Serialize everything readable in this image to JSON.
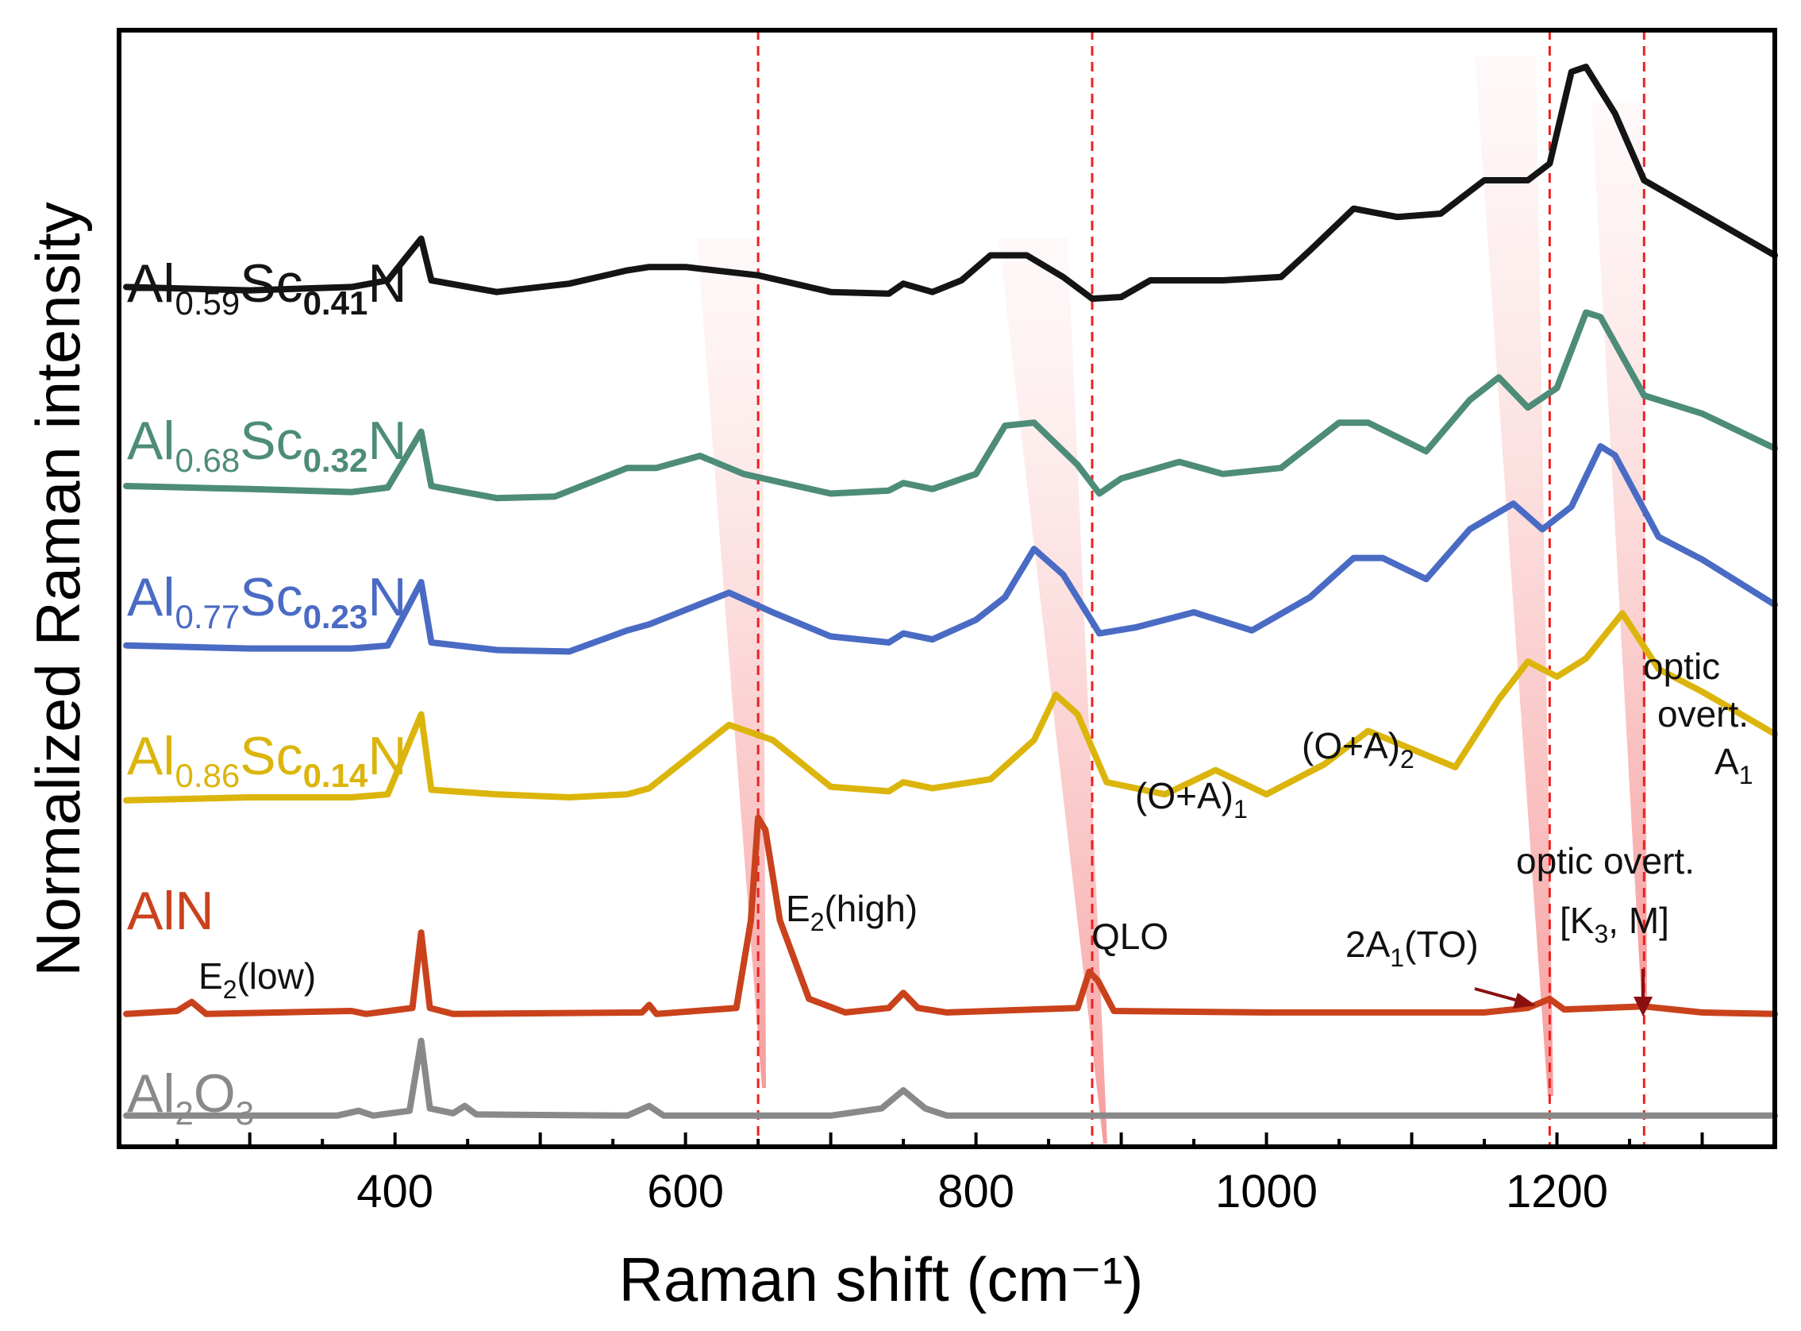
{
  "chart_data": {
    "type": "line",
    "title": "",
    "xlabel": "Raman shift (cm⁻¹)",
    "ylabel": "Normalized Raman intensity",
    "xlim": [
      210,
      1350
    ],
    "x_ticks": [
      400,
      600,
      800,
      1000,
      1200
    ],
    "grid": false,
    "legend": "inline-left",
    "series": [
      {
        "name_parts": [
          "Al",
          "0.59",
          "Sc",
          "0.41",
          "N"
        ],
        "color": "#141414",
        "offset": 5,
        "points": [
          [
            215,
            0.66
          ],
          [
            300,
            0.64
          ],
          [
            370,
            0.66
          ],
          [
            395,
            0.7
          ],
          [
            418,
            0.95
          ],
          [
            425,
            0.7
          ],
          [
            470,
            0.63
          ],
          [
            520,
            0.68
          ],
          [
            560,
            0.76
          ],
          [
            575,
            0.78
          ],
          [
            600,
            0.78
          ],
          [
            650,
            0.73
          ],
          [
            700,
            0.63
          ],
          [
            740,
            0.62
          ],
          [
            750,
            0.68
          ],
          [
            770,
            0.63
          ],
          [
            790,
            0.7
          ],
          [
            810,
            0.85
          ],
          [
            835,
            0.85
          ],
          [
            860,
            0.72
          ],
          [
            880,
            0.59
          ],
          [
            900,
            0.6
          ],
          [
            920,
            0.7
          ],
          [
            970,
            0.7
          ],
          [
            1010,
            0.72
          ],
          [
            1030,
            0.88
          ],
          [
            1060,
            1.13
          ],
          [
            1090,
            1.08
          ],
          [
            1120,
            1.1
          ],
          [
            1150,
            1.3
          ],
          [
            1180,
            1.3
          ],
          [
            1195,
            1.4
          ],
          [
            1210,
            1.95
          ],
          [
            1220,
            1.98
          ],
          [
            1240,
            1.7
          ],
          [
            1260,
            1.3
          ],
          [
            1300,
            1.1
          ],
          [
            1350,
            0.85
          ]
        ]
      },
      {
        "name_parts": [
          "Al",
          "0.68",
          "Sc",
          "0.32",
          "N"
        ],
        "color": "#4d8c78",
        "offset": 4,
        "points": [
          [
            215,
            0.4
          ],
          [
            300,
            0.38
          ],
          [
            370,
            0.36
          ],
          [
            395,
            0.39
          ],
          [
            418,
            0.76
          ],
          [
            425,
            0.4
          ],
          [
            470,
            0.32
          ],
          [
            510,
            0.33
          ],
          [
            560,
            0.52
          ],
          [
            580,
            0.52
          ],
          [
            610,
            0.6
          ],
          [
            640,
            0.48
          ],
          [
            700,
            0.35
          ],
          [
            740,
            0.37
          ],
          [
            750,
            0.42
          ],
          [
            770,
            0.38
          ],
          [
            800,
            0.48
          ],
          [
            820,
            0.8
          ],
          [
            840,
            0.82
          ],
          [
            870,
            0.54
          ],
          [
            885,
            0.35
          ],
          [
            900,
            0.45
          ],
          [
            940,
            0.56
          ],
          [
            970,
            0.48
          ],
          [
            1010,
            0.52
          ],
          [
            1050,
            0.82
          ],
          [
            1070,
            0.82
          ],
          [
            1110,
            0.63
          ],
          [
            1140,
            0.97
          ],
          [
            1160,
            1.12
          ],
          [
            1180,
            0.92
          ],
          [
            1200,
            1.05
          ],
          [
            1220,
            1.55
          ],
          [
            1230,
            1.52
          ],
          [
            1260,
            1.0
          ],
          [
            1300,
            0.88
          ],
          [
            1350,
            0.65
          ]
        ]
      },
      {
        "name_parts": [
          "Al",
          "0.77",
          "Sc",
          "0.23",
          "N"
        ],
        "color": "#4a6bc4",
        "offset": 3,
        "points": [
          [
            215,
            0.38
          ],
          [
            300,
            0.36
          ],
          [
            370,
            0.36
          ],
          [
            395,
            0.38
          ],
          [
            418,
            0.8
          ],
          [
            425,
            0.4
          ],
          [
            470,
            0.35
          ],
          [
            520,
            0.34
          ],
          [
            560,
            0.48
          ],
          [
            575,
            0.52
          ],
          [
            630,
            0.73
          ],
          [
            660,
            0.6
          ],
          [
            700,
            0.44
          ],
          [
            740,
            0.4
          ],
          [
            750,
            0.46
          ],
          [
            770,
            0.42
          ],
          [
            800,
            0.55
          ],
          [
            820,
            0.7
          ],
          [
            840,
            1.02
          ],
          [
            860,
            0.85
          ],
          [
            885,
            0.46
          ],
          [
            910,
            0.5
          ],
          [
            950,
            0.6
          ],
          [
            990,
            0.48
          ],
          [
            1030,
            0.7
          ],
          [
            1060,
            0.96
          ],
          [
            1080,
            0.96
          ],
          [
            1110,
            0.82
          ],
          [
            1140,
            1.15
          ],
          [
            1170,
            1.32
          ],
          [
            1190,
            1.15
          ],
          [
            1210,
            1.3
          ],
          [
            1230,
            1.7
          ],
          [
            1240,
            1.64
          ],
          [
            1270,
            1.1
          ],
          [
            1300,
            0.95
          ],
          [
            1350,
            0.65
          ]
        ]
      },
      {
        "name_parts": [
          "Al",
          "0.86",
          "Sc",
          "0.14",
          "N"
        ],
        "color": "#dcb50c",
        "offset": 2,
        "points": [
          [
            215,
            0.38
          ],
          [
            300,
            0.4
          ],
          [
            370,
            0.4
          ],
          [
            395,
            0.42
          ],
          [
            418,
            0.95
          ],
          [
            425,
            0.45
          ],
          [
            470,
            0.42
          ],
          [
            520,
            0.4
          ],
          [
            560,
            0.42
          ],
          [
            575,
            0.46
          ],
          [
            600,
            0.65
          ],
          [
            630,
            0.88
          ],
          [
            660,
            0.78
          ],
          [
            700,
            0.47
          ],
          [
            740,
            0.44
          ],
          [
            750,
            0.5
          ],
          [
            770,
            0.46
          ],
          [
            810,
            0.52
          ],
          [
            840,
            0.78
          ],
          [
            855,
            1.08
          ],
          [
            870,
            0.95
          ],
          [
            890,
            0.5
          ],
          [
            930,
            0.42
          ],
          [
            965,
            0.58
          ],
          [
            1000,
            0.42
          ],
          [
            1040,
            0.62
          ],
          [
            1070,
            0.84
          ],
          [
            1100,
            0.72
          ],
          [
            1130,
            0.6
          ],
          [
            1160,
            1.05
          ],
          [
            1180,
            1.3
          ],
          [
            1200,
            1.2
          ],
          [
            1220,
            1.32
          ],
          [
            1245,
            1.62
          ],
          [
            1270,
            1.25
          ],
          [
            1300,
            1.1
          ],
          [
            1350,
            0.82
          ]
        ]
      },
      {
        "name_parts": [
          "AlN"
        ],
        "color": "#c9421c",
        "offset": 1,
        "points": [
          [
            215,
            0.08
          ],
          [
            250,
            0.1
          ],
          [
            260,
            0.16
          ],
          [
            270,
            0.08
          ],
          [
            370,
            0.1
          ],
          [
            380,
            0.08
          ],
          [
            412,
            0.12
          ],
          [
            418,
            0.62
          ],
          [
            424,
            0.12
          ],
          [
            440,
            0.08
          ],
          [
            570,
            0.09
          ],
          [
            575,
            0.14
          ],
          [
            580,
            0.08
          ],
          [
            635,
            0.12
          ],
          [
            645,
            0.7
          ],
          [
            650,
            1.38
          ],
          [
            655,
            1.3
          ],
          [
            665,
            0.7
          ],
          [
            685,
            0.18
          ],
          [
            710,
            0.09
          ],
          [
            740,
            0.12
          ],
          [
            750,
            0.22
          ],
          [
            760,
            0.12
          ],
          [
            780,
            0.09
          ],
          [
            870,
            0.12
          ],
          [
            878,
            0.36
          ],
          [
            884,
            0.3
          ],
          [
            895,
            0.1
          ],
          [
            1000,
            0.09
          ],
          [
            1150,
            0.09
          ],
          [
            1180,
            0.12
          ],
          [
            1195,
            0.18
          ],
          [
            1205,
            0.11
          ],
          [
            1260,
            0.13
          ],
          [
            1300,
            0.09
          ],
          [
            1350,
            0.08
          ]
        ]
      },
      {
        "name_parts": [
          "Al",
          "2",
          "O",
          "3"
        ],
        "color": "#898989",
        "offset": 0,
        "points": [
          [
            215,
            0.1
          ],
          [
            360,
            0.1
          ],
          [
            375,
            0.14
          ],
          [
            385,
            0.1
          ],
          [
            410,
            0.14
          ],
          [
            418,
            0.72
          ],
          [
            424,
            0.16
          ],
          [
            440,
            0.12
          ],
          [
            448,
            0.18
          ],
          [
            456,
            0.11
          ],
          [
            560,
            0.1
          ],
          [
            575,
            0.18
          ],
          [
            585,
            0.1
          ],
          [
            700,
            0.1
          ],
          [
            735,
            0.16
          ],
          [
            750,
            0.31
          ],
          [
            765,
            0.16
          ],
          [
            780,
            0.1
          ],
          [
            900,
            0.1
          ],
          [
            1350,
            0.1
          ]
        ]
      }
    ],
    "dashed_reference_lines": [
      650,
      880,
      1195,
      1260
    ],
    "annotations": [
      {
        "text": "E",
        "sub": "2",
        "after": "(low)"
      },
      {
        "text": "E",
        "sub": "2",
        "after": "(high)"
      },
      {
        "text": "QLO",
        "sub": "",
        "after": ""
      },
      {
        "text": "(O+A)",
        "sub": "1",
        "after": ""
      },
      {
        "text": "(O+A)",
        "sub": "2",
        "after": ""
      },
      {
        "text": "2A",
        "sub": "1",
        "after": "(TO)"
      },
      {
        "text": "optic overt.",
        "sub": "",
        "after": ""
      },
      {
        "text": "[K",
        "sub": "3",
        "after": ", M]"
      },
      {
        "text": "optic",
        "sub": "",
        "after": ""
      },
      {
        "text": "overt.",
        "sub": "",
        "after": ""
      },
      {
        "text": "A",
        "sub": "1",
        "after": ""
      }
    ]
  }
}
